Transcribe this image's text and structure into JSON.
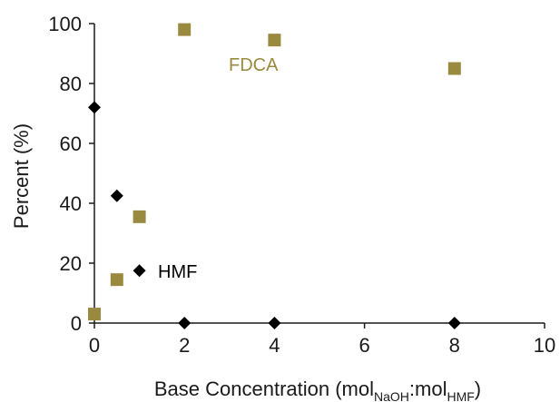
{
  "chart_data": {
    "type": "scatter",
    "xlabel": {
      "main": "Base Concentration (mol",
      "sub1": "NaOH",
      "mid": ":mol",
      "sub2": "HMF",
      "end": ")"
    },
    "ylabel": "Percent (%)",
    "xlim": [
      0,
      10
    ],
    "ylim": [
      0,
      100
    ],
    "x_ticks": [
      0,
      2,
      4,
      6,
      8,
      10
    ],
    "y_ticks": [
      0,
      20,
      40,
      60,
      80,
      100
    ],
    "grid": false,
    "series": [
      {
        "name": "FDCA",
        "marker": "square",
        "color": "#9a8a3f",
        "points": [
          {
            "x": 0,
            "y": 3
          },
          {
            "x": 0.5,
            "y": 14.5
          },
          {
            "x": 1,
            "y": 35.5
          },
          {
            "x": 2,
            "y": 98
          },
          {
            "x": 4,
            "y": 94.5
          },
          {
            "x": 8,
            "y": 85
          }
        ]
      },
      {
        "name": "HMF",
        "marker": "diamond",
        "color": "#000000",
        "points": [
          {
            "x": 0,
            "y": 72
          },
          {
            "x": 0.5,
            "y": 42.5
          },
          {
            "x": 1,
            "y": 17.5
          },
          {
            "x": 2,
            "y": 0
          },
          {
            "x": 4,
            "y": 0
          },
          {
            "x": 8,
            "y": 0
          }
        ]
      }
    ]
  }
}
